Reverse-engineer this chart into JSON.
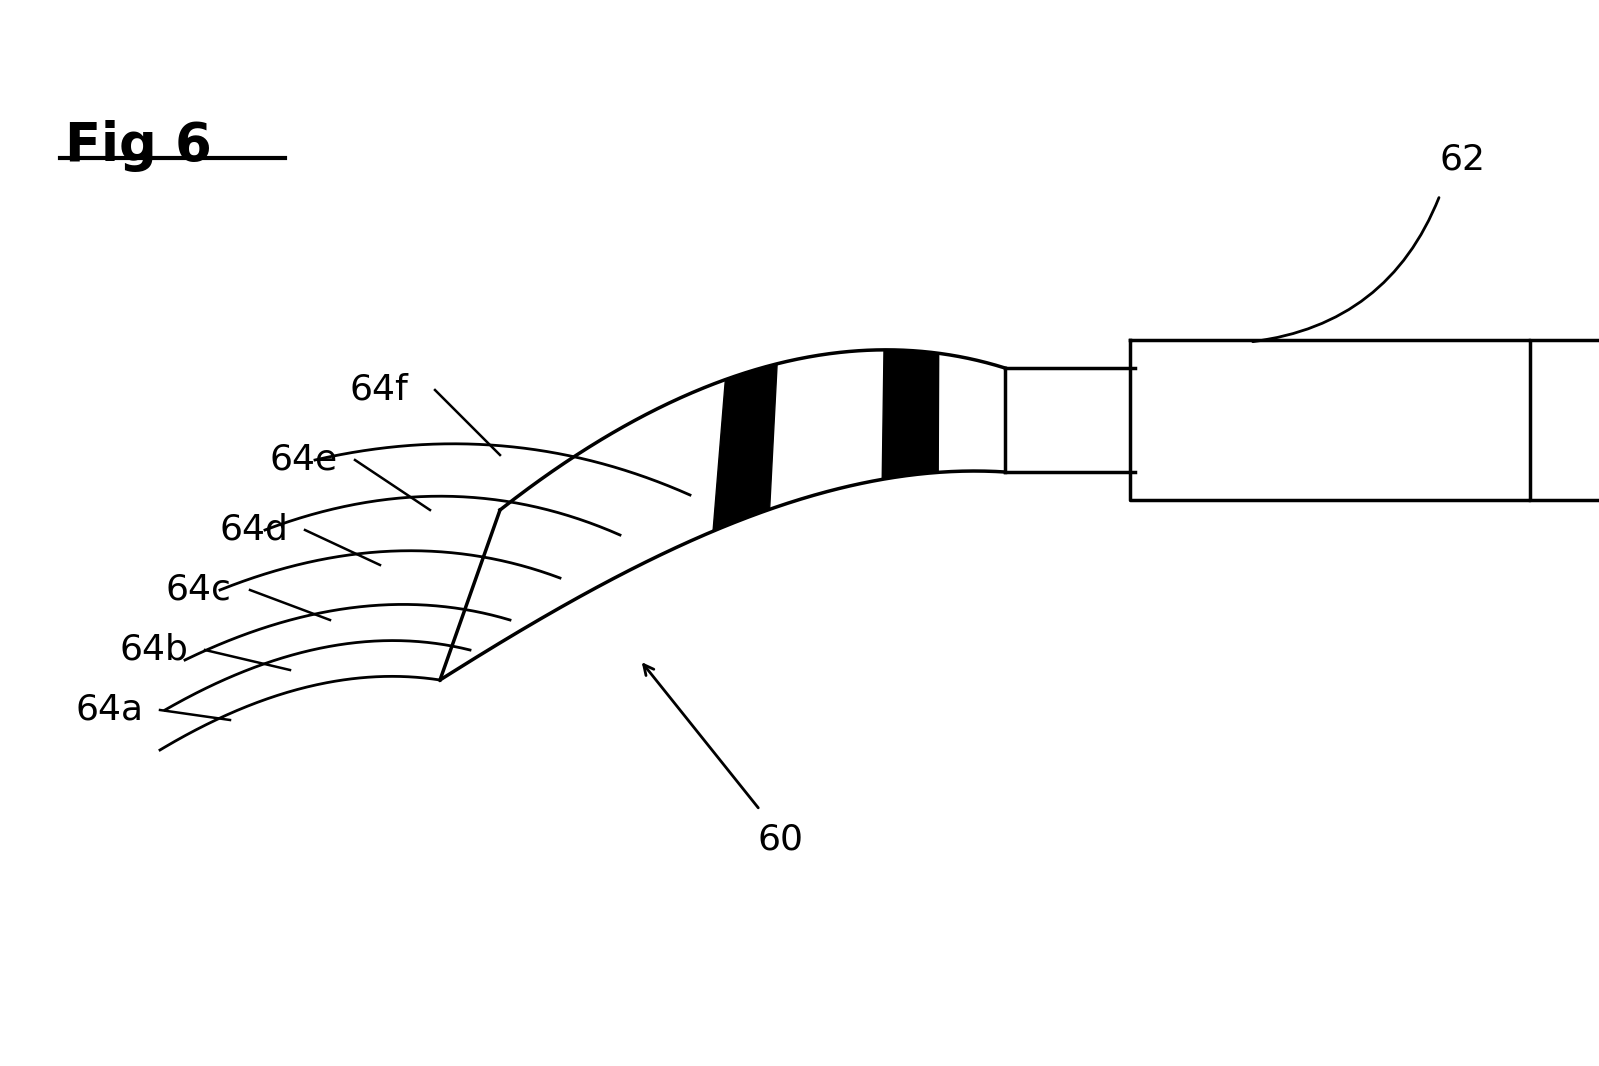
{
  "background_color": "#ffffff",
  "line_color": "#000000",
  "fig_width": 15.99,
  "fig_height": 10.66,
  "fig_title": "Fig 6",
  "labels": [
    "64f",
    "64e",
    "64d",
    "64c",
    "64b",
    "64a"
  ],
  "label_62": "62",
  "label_60": "60"
}
